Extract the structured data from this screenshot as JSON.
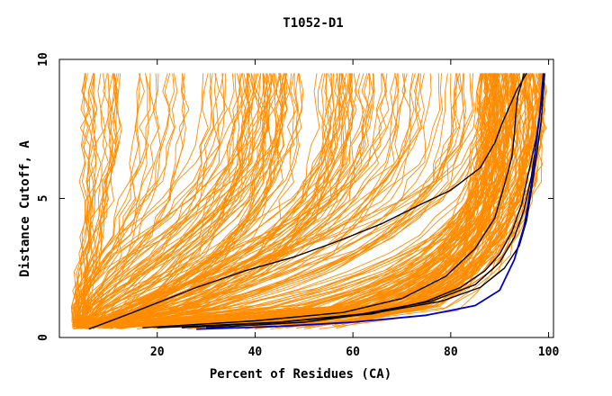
{
  "chart_data": {
    "type": "line",
    "title": "T1052-D1",
    "xlabel": "Percent of Residues (CA)",
    "ylabel": "Distance Cutoff, A",
    "xlim": [
      0,
      101
    ],
    "ylim": [
      0,
      10
    ],
    "x_ticks": [
      {
        "value": 20,
        "label": "20"
      },
      {
        "value": 40,
        "label": "40"
      },
      {
        "value": 60,
        "label": "60"
      },
      {
        "value": 80,
        "label": "80"
      },
      {
        "value": 100,
        "label": "100"
      }
    ],
    "y_ticks": [
      {
        "value": 0,
        "label": "0"
      },
      {
        "value": 5,
        "label": "5"
      },
      {
        "value": 10,
        "label": "10"
      }
    ],
    "grid": false,
    "legend": "none",
    "colors": {
      "models": "#ff8c00",
      "highlight": "#000000",
      "best": "#0000cd",
      "frame": "#000000"
    },
    "series_groups": {
      "background_models": {
        "count": 300,
        "color": "#ff8c00",
        "description_of_shape": "x increases with y from low-cutoff start to 9.5 A"
      }
    },
    "series": [
      {
        "color": "#0000cd",
        "x": [
          28,
          45,
          60,
          75,
          85,
          90,
          93,
          95,
          96.5,
          97.5,
          98.5,
          99
        ],
        "y": [
          0.3,
          0.4,
          0.55,
          0.8,
          1.15,
          1.7,
          2.8,
          4.0,
          5.5,
          7.0,
          8.5,
          9.5
        ]
      },
      {
        "color": "#000000",
        "x": [
          6,
          15,
          28,
          38,
          48,
          56,
          66,
          74,
          80,
          86,
          89,
          90.5,
          92,
          93.5,
          95.5
        ],
        "y": [
          0.3,
          0.9,
          1.8,
          2.4,
          2.9,
          3.4,
          4.1,
          4.8,
          5.3,
          6.1,
          7.0,
          7.7,
          8.3,
          8.9,
          9.5
        ]
      },
      {
        "color": "#000000",
        "x": [
          17,
          40,
          58,
          70,
          79,
          85,
          89,
          91,
          92.5,
          93,
          93.3,
          93.6,
          95
        ],
        "y": [
          0.35,
          0.6,
          0.9,
          1.4,
          2.2,
          3.2,
          4.3,
          5.5,
          6.5,
          7.3,
          8.0,
          8.6,
          9.5
        ]
      },
      {
        "color": "#000000",
        "x": [
          25,
          45,
          64,
          75,
          82,
          87,
          90,
          92.5,
          94.5,
          96,
          97.5,
          98.5,
          99
        ],
        "y": [
          0.35,
          0.55,
          0.85,
          1.3,
          1.8,
          2.4,
          3.0,
          3.8,
          4.8,
          6.0,
          7.2,
          8.4,
          9.5
        ]
      },
      {
        "color": "#000000",
        "x": [
          30,
          50,
          65,
          78,
          86,
          91,
          94,
          95.5,
          96.5,
          97.5,
          98.5,
          99.2
        ],
        "y": [
          0.35,
          0.55,
          0.9,
          1.3,
          1.8,
          2.5,
          3.3,
          4.2,
          5.3,
          6.5,
          7.8,
          9.5
        ]
      },
      {
        "color": "#000000",
        "x": [
          20,
          45,
          62,
          76,
          85,
          90,
          93,
          95,
          96.5,
          97.5,
          98.3,
          98.9
        ],
        "y": [
          0.35,
          0.55,
          0.85,
          1.3,
          1.9,
          2.7,
          3.6,
          4.6,
          5.8,
          7.0,
          8.2,
          9.5
        ]
      }
    ]
  }
}
